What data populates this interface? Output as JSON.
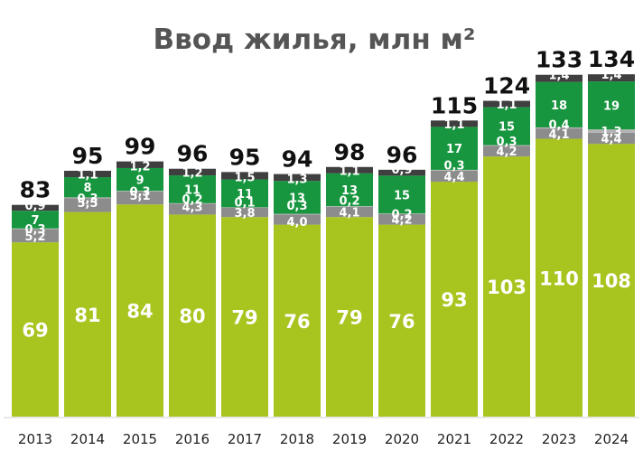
{
  "chart_data": {
    "type": "bar",
    "stacked": true,
    "title": "Ввод жилья, млн м²",
    "xlabel": "",
    "ylabel": "",
    "ylim": [
      0,
      140
    ],
    "grid": false,
    "legend": "none",
    "categories": [
      "2013",
      "2014",
      "2015",
      "2016",
      "2017",
      "2018",
      "2019",
      "2020",
      "2021",
      "2022",
      "2023",
      "2024"
    ],
    "totals": [
      "83",
      "95",
      "99",
      "96",
      "95",
      "94",
      "98",
      "96",
      "115",
      "124",
      "133",
      "134"
    ],
    "series": [
      {
        "color": "#a8c41f",
        "values": [
          69,
          81,
          84,
          80,
          79,
          76,
          79,
          76,
          93,
          103,
          110,
          108
        ],
        "labels": [
          "69",
          "81",
          "84",
          "80",
          "79",
          "76",
          "79",
          "76",
          "93",
          "103",
          "110",
          "108"
        ]
      },
      {
        "color": "#8c8c8c",
        "values": [
          5.2,
          5.5,
          5.1,
          4.3,
          3.8,
          4.0,
          4.1,
          4.2,
          4.4,
          4.2,
          4.1,
          4.4
        ],
        "labels": [
          "5,2",
          "5,5",
          "5,1",
          "4,3",
          "3,8",
          "4,0",
          "4,1",
          "4,2",
          "4,4",
          "4,2",
          "4,1",
          "4,4"
        ]
      },
      {
        "color": "#b4b4b4",
        "values": [
          0.3,
          0.3,
          0.3,
          0.2,
          0.1,
          0.3,
          0.2,
          0.2,
          0.3,
          0.3,
          0.4,
          1.3
        ],
        "labels": [
          "0,3",
          "0,3",
          "0,3",
          "0,2",
          "0,1",
          "0,3",
          "0,2",
          "0,2",
          "0,3",
          "0,3",
          "0,4",
          "1,3"
        ]
      },
      {
        "color": "#17963f",
        "values": [
          7,
          8,
          9,
          11,
          11,
          13,
          13,
          15,
          17,
          15,
          18,
          19
        ],
        "labels": [
          "7",
          "8",
          "9",
          "11",
          "11",
          "13",
          "13",
          "15",
          "17",
          "15",
          "18",
          "19"
        ]
      },
      {
        "color": "#3f3f3f",
        "values": [
          0.9,
          1.1,
          1.2,
          1.2,
          1.5,
          1.3,
          1.1,
          0.9,
          1.1,
          1.1,
          1.4,
          1.4
        ],
        "labels": [
          "0,9",
          "1,1",
          "1,2",
          "1,2",
          "1,5",
          "1,3",
          "1,1",
          "0,9",
          "1,1",
          "1,1",
          "1,4",
          "1,4"
        ]
      }
    ]
  }
}
